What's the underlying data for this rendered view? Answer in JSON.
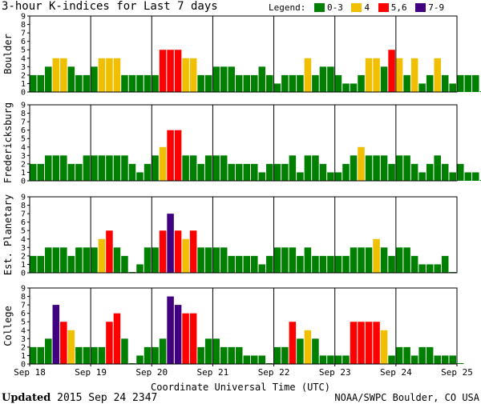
{
  "header": {
    "title": "3-hour K-indices for Last 7 days",
    "legend_label": "Legend:"
  },
  "legend": [
    {
      "label": "0-3",
      "color": "#008000"
    },
    {
      "label": "4",
      "color": "#f0c000"
    },
    {
      "label": "5,6",
      "color": "#ff0000"
    },
    {
      "label": "7-9",
      "color": "#400080"
    }
  ],
  "footer": {
    "updated_label": "Updated",
    "updated_value": "2015 Sep 24 2347",
    "source": "NOAA/SWPC Boulder, CO USA"
  },
  "chart_data": {
    "type": "bar",
    "xlabel": "Coordinate Universal Time (UTC)",
    "x_ticks": [
      "Sep 18",
      "Sep 19",
      "Sep 20",
      "Sep 21",
      "Sep 22",
      "Sep 23",
      "Sep 24",
      "Sep 25"
    ],
    "ylim": [
      0,
      9
    ],
    "y_ticks": [
      0,
      1,
      2,
      3,
      4,
      5,
      6,
      7,
      8,
      9
    ],
    "interval": "3-hour",
    "bins_per_day": 8,
    "color_scale": {
      "0-3": "#008000",
      "4": "#f0c000",
      "5,6": "#ff0000",
      "7-9": "#400080"
    },
    "panels": [
      {
        "name": "Boulder",
        "values": [
          2,
          2,
          3,
          4,
          4,
          3,
          2,
          2,
          3,
          4,
          4,
          4,
          2,
          2,
          2,
          2,
          2,
          5,
          5,
          5,
          4,
          4,
          2,
          2,
          3,
          3,
          3,
          2,
          2,
          2,
          3,
          2,
          1,
          2,
          2,
          2,
          4,
          2,
          3,
          3,
          2,
          1,
          1,
          2,
          4,
          4,
          3,
          5,
          4,
          2,
          4,
          1,
          2,
          4,
          2,
          1,
          2,
          2,
          2,
          0
        ]
      },
      {
        "name": "Fredericksburg",
        "values": [
          2,
          2,
          3,
          3,
          3,
          2,
          2,
          3,
          3,
          3,
          3,
          3,
          3,
          2,
          1,
          2,
          3,
          4,
          6,
          6,
          3,
          3,
          2,
          3,
          3,
          3,
          2,
          2,
          2,
          2,
          1,
          2,
          2,
          2,
          3,
          1,
          3,
          3,
          2,
          1,
          1,
          2,
          3,
          4,
          3,
          3,
          3,
          2,
          3,
          3,
          2,
          1,
          2,
          3,
          2,
          1,
          2,
          1,
          1,
          0
        ]
      },
      {
        "name": "Est. Planetary",
        "values": [
          2,
          2,
          3,
          3,
          3,
          2,
          3,
          3,
          3,
          4,
          5,
          3,
          2,
          0,
          1,
          3,
          3,
          5,
          7,
          5,
          4,
          5,
          3,
          3,
          3,
          3,
          2,
          2,
          2,
          2,
          1,
          2,
          3,
          3,
          3,
          2,
          3,
          2,
          2,
          2,
          2,
          2,
          3,
          3,
          3,
          4,
          3,
          2,
          3,
          3,
          2,
          1,
          1,
          1,
          2,
          0
        ]
      },
      {
        "name": "College",
        "values": [
          2,
          2,
          3,
          7,
          5,
          4,
          2,
          2,
          2,
          2,
          5,
          6,
          3,
          0,
          1,
          2,
          2,
          3,
          8,
          7,
          6,
          6,
          2,
          3,
          3,
          2,
          2,
          2,
          1,
          1,
          1,
          0,
          2,
          2,
          5,
          3,
          4,
          3,
          1,
          1,
          1,
          1,
          5,
          5,
          5,
          5,
          4,
          1,
          2,
          2,
          1,
          2,
          2,
          1,
          1,
          1,
          0
        ]
      }
    ]
  }
}
